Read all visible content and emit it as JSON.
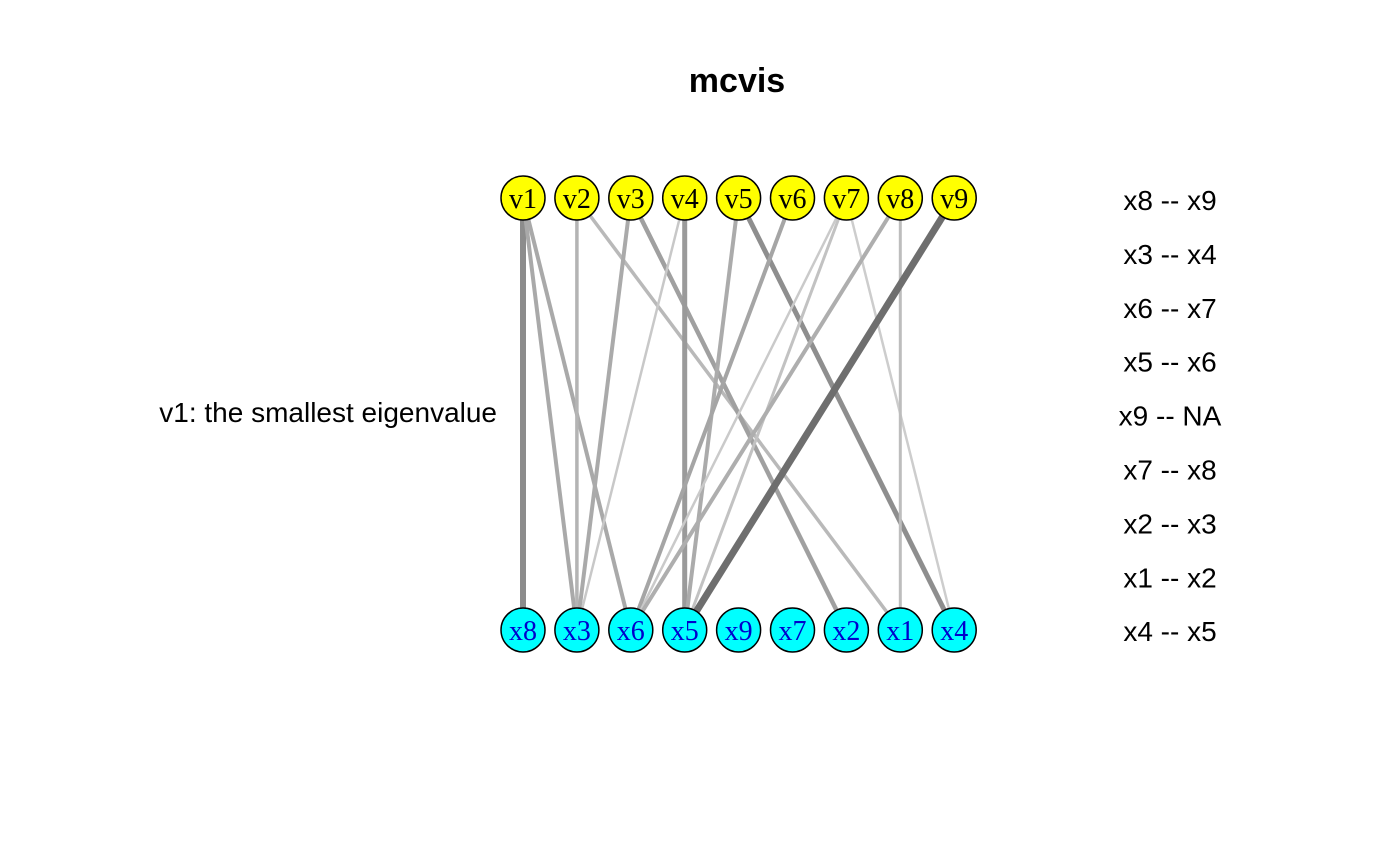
{
  "title": "mcvis",
  "side_label": "v1: the smallest eigenvalue",
  "colors": {
    "top_node": "#ffff00",
    "bottom_node": "#00ffff",
    "top_text": "#000000",
    "bottom_text": "#0000cc"
  },
  "top_nodes": [
    "v1",
    "v2",
    "v3",
    "v4",
    "v5",
    "v6",
    "v7",
    "v8",
    "v9"
  ],
  "bottom_nodes": [
    "x8",
    "x3",
    "x6",
    "x5",
    "x9",
    "x7",
    "x2",
    "x1",
    "x4"
  ],
  "pair_labels": [
    "x8 -- x9",
    "x3 -- x4",
    "x6 -- x7",
    "x5 -- x6",
    "x9 -- NA",
    "x7 -- x8",
    "x2 -- x3",
    "x1 -- x2",
    "x4 -- x5"
  ],
  "edges": [
    {
      "from": "v1",
      "to": "x8",
      "shade": "#8c8c8c",
      "weight": 6
    },
    {
      "from": "v1",
      "to": "x3",
      "shade": "#a9a9a9",
      "weight": 4
    },
    {
      "from": "v1",
      "to": "x6",
      "shade": "#a9a9a9",
      "weight": 4
    },
    {
      "from": "v2",
      "to": "x3",
      "shade": "#b4b4b4",
      "weight": 3.5
    },
    {
      "from": "v2",
      "to": "x1",
      "shade": "#b9b9b9",
      "weight": 3.5
    },
    {
      "from": "v3",
      "to": "x3",
      "shade": "#aaaaaa",
      "weight": 4
    },
    {
      "from": "v3",
      "to": "x2",
      "shade": "#a0a0a0",
      "weight": 4.5
    },
    {
      "from": "v4",
      "to": "x3",
      "shade": "#c8c8c8",
      "weight": 2.5
    },
    {
      "from": "v4",
      "to": "x5",
      "shade": "#9a9a9a",
      "weight": 5
    },
    {
      "from": "v5",
      "to": "x5",
      "shade": "#ababab",
      "weight": 4
    },
    {
      "from": "v5",
      "to": "x4",
      "shade": "#8e8e8e",
      "weight": 5
    },
    {
      "from": "v6",
      "to": "x6",
      "shade": "#a5a5a5",
      "weight": 4
    },
    {
      "from": "v7",
      "to": "x6",
      "shade": "#cacaca",
      "weight": 2.5
    },
    {
      "from": "v7",
      "to": "x5",
      "shade": "#c2c2c2",
      "weight": 3
    },
    {
      "from": "v7",
      "to": "x4",
      "shade": "#cdcdcd",
      "weight": 2.5
    },
    {
      "from": "v8",
      "to": "x6",
      "shade": "#aeaeae",
      "weight": 4
    },
    {
      "from": "v8",
      "to": "x1",
      "shade": "#bdbdbd",
      "weight": 3
    },
    {
      "from": "v9",
      "to": "x5",
      "shade": "#6e6e6e",
      "weight": 7
    }
  ]
}
